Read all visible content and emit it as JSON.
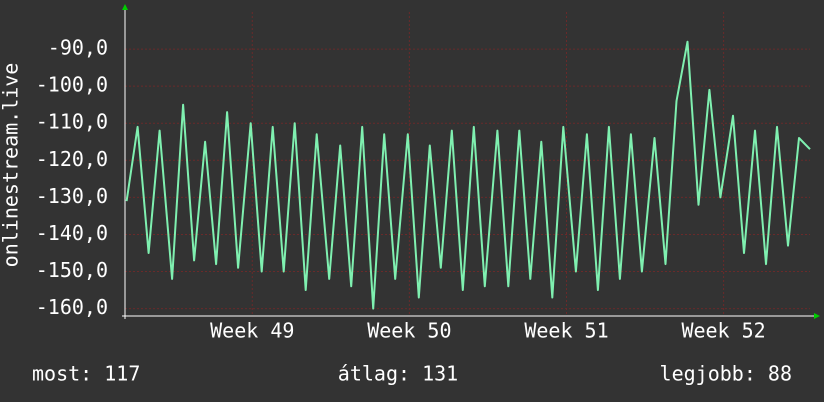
{
  "chart_data": {
    "type": "line",
    "ylabel": "onlinestream.live",
    "x": [
      48.2,
      48.27,
      48.34,
      48.41,
      48.49,
      48.56,
      48.63,
      48.7,
      48.77,
      48.84,
      48.91,
      48.99,
      49.06,
      49.13,
      49.2,
      49.27,
      49.34,
      49.41,
      49.49,
      49.56,
      49.63,
      49.7,
      49.77,
      49.84,
      49.91,
      49.99,
      50.06,
      50.13,
      50.2,
      50.27,
      50.34,
      50.41,
      50.48,
      50.56,
      50.63,
      50.7,
      50.77,
      50.84,
      50.91,
      50.98,
      51.06,
      51.13,
      51.2,
      51.27,
      51.34,
      51.41,
      51.48,
      51.56,
      51.63,
      51.7,
      51.77,
      51.84,
      51.91,
      51.98,
      52.06,
      52.13,
      52.2,
      52.27,
      52.34,
      52.41,
      52.48,
      52.55
    ],
    "series": [
      {
        "color": "#7ff0b0",
        "values": [
          -131,
          -111,
          -145,
          -112,
          -152,
          -105,
          -147,
          -115,
          -148,
          -107,
          -149,
          -110,
          -150,
          -111,
          -150,
          -110,
          -155,
          -113,
          -152,
          -116,
          -154,
          -111,
          -160,
          -113,
          -152,
          -113,
          -157,
          -116,
          -149,
          -112,
          -155,
          -111,
          -154,
          -112,
          -154,
          -112,
          -152,
          -115,
          -157,
          -111,
          -150,
          -113,
          -155,
          -111,
          -152,
          -113,
          -150,
          -114,
          -148,
          -104,
          -88,
          -132,
          -101,
          -130,
          -108,
          -145,
          -112,
          -148,
          -111,
          -143,
          -114,
          -117
        ]
      }
    ],
    "xlim": [
      48.19,
      52.55
    ],
    "xticks": [
      {
        "value": 49,
        "label": "Week 49"
      },
      {
        "value": 50,
        "label": "Week 50"
      },
      {
        "value": 51,
        "label": "Week 51"
      },
      {
        "value": 52,
        "label": "Week 52"
      }
    ],
    "ylim": [
      -162,
      -80
    ],
    "yticks": [
      {
        "value": -90,
        "label": "-90,0"
      },
      {
        "value": -100,
        "label": "-100,0"
      },
      {
        "value": -110,
        "label": "-110,0"
      },
      {
        "value": -120,
        "label": "-120,0"
      },
      {
        "value": -130,
        "label": "-130,0"
      },
      {
        "value": -140,
        "label": "-140,0"
      },
      {
        "value": -150,
        "label": "-150,0"
      },
      {
        "value": -160,
        "label": "-160,0"
      }
    ],
    "grid": true,
    "stats": [
      "most: 117",
      "átlag: 131",
      "legjobb: 88"
    ]
  }
}
